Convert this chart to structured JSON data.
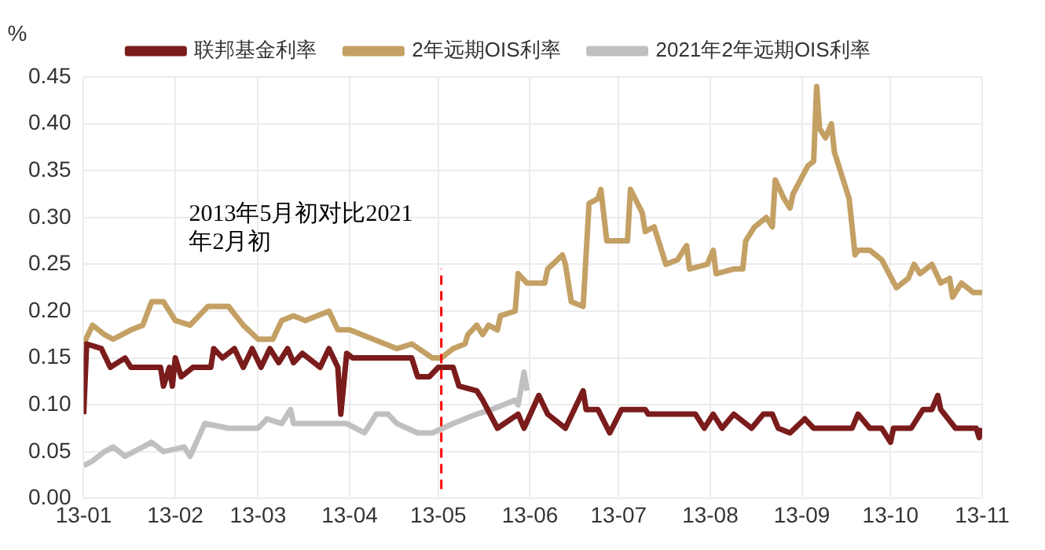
{
  "chart_data": {
    "type": "line",
    "ylabel": "%",
    "xlim": [
      "2013-01-01",
      "2013-11-01"
    ],
    "xticks": [
      {
        "value": "2013-01",
        "label": "13-01"
      },
      {
        "value": "2013-02",
        "label": "13-02"
      },
      {
        "value": "2013-03",
        "label": "13-03"
      },
      {
        "value": "2013-04",
        "label": "13-04"
      },
      {
        "value": "2013-05",
        "label": "13-05"
      },
      {
        "value": "2013-06",
        "label": "13-06"
      },
      {
        "value": "2013-07",
        "label": "13-07"
      },
      {
        "value": "2013-08",
        "label": "13-08"
      },
      {
        "value": "2013-09",
        "label": "13-09"
      },
      {
        "value": "2013-10",
        "label": "13-10"
      },
      {
        "value": "2013-11",
        "label": "13-11"
      }
    ],
    "ylim": [
      0,
      0.45
    ],
    "yticks": [
      {
        "value": 0,
        "label": "0.00"
      },
      {
        "value": 0.05,
        "label": "0.05"
      },
      {
        "value": 0.1,
        "label": "0.10"
      },
      {
        "value": 0.15,
        "label": "0.15"
      },
      {
        "value": 0.2,
        "label": "0.20"
      },
      {
        "value": 0.25,
        "label": "0.25"
      },
      {
        "value": 0.3,
        "label": "0.30"
      },
      {
        "value": 0.35,
        "label": "0.35"
      },
      {
        "value": 0.4,
        "label": "0.40"
      },
      {
        "value": 0.45,
        "label": "0.45"
      }
    ],
    "grid": true,
    "legend": "top",
    "marker": "none",
    "line_style": "solid",
    "ref_lines": [
      {
        "axis": "x",
        "value": "2013-05-02",
        "label": "2013年5月初对比2021\n年2月初",
        "color": "#ff0000",
        "line_style": "dashed"
      }
    ],
    "series": [
      {
        "name": "联邦基金利率",
        "color": "#7b1c1c",
        "x": [
          "2013-01-01",
          "2013-01-02",
          "2013-01-07",
          "2013-01-10",
          "2013-01-15",
          "2013-01-17",
          "2013-01-27",
          "2013-01-28",
          "2013-01-30",
          "2013-01-31",
          "2013-02-01",
          "2013-02-03",
          "2013-02-07",
          "2013-02-13",
          "2013-02-14",
          "2013-02-17",
          "2013-02-21",
          "2013-02-24",
          "2013-02-27",
          "2013-03-02",
          "2013-03-05",
          "2013-03-08",
          "2013-03-11",
          "2013-03-13",
          "2013-03-16",
          "2013-03-22",
          "2013-03-25",
          "2013-03-28",
          "2013-03-29",
          "2013-03-31",
          "2013-04-02",
          "2013-04-22",
          "2013-04-24",
          "2013-04-28",
          "2013-05-01",
          "2013-05-06",
          "2013-05-08",
          "2013-05-14",
          "2013-05-16",
          "2013-05-21",
          "2013-05-28",
          "2013-05-30",
          "2013-06-04",
          "2013-06-07",
          "2013-06-13",
          "2013-06-19",
          "2013-06-20",
          "2013-06-24",
          "2013-06-28",
          "2013-07-02",
          "2013-07-10",
          "2013-07-11",
          "2013-07-27",
          "2013-07-30",
          "2013-08-02",
          "2013-08-05",
          "2013-08-09",
          "2013-08-15",
          "2013-08-19",
          "2013-08-22",
          "2013-08-24",
          "2013-08-28",
          "2013-09-02",
          "2013-09-05",
          "2013-09-18",
          "2013-09-20",
          "2013-09-24",
          "2013-09-28",
          "2013-10-01",
          "2013-10-02",
          "2013-10-08",
          "2013-10-12",
          "2013-10-15",
          "2013-10-17",
          "2013-10-18",
          "2013-10-23",
          "2013-10-30",
          "2013-10-31",
          "2013-11-01"
        ],
        "values": [
          0.09,
          0.165,
          0.16,
          0.14,
          0.15,
          0.14,
          0.14,
          0.12,
          0.14,
          0.12,
          0.15,
          0.13,
          0.14,
          0.14,
          0.16,
          0.15,
          0.16,
          0.14,
          0.16,
          0.14,
          0.16,
          0.145,
          0.16,
          0.145,
          0.155,
          0.14,
          0.16,
          0.14,
          0.09,
          0.155,
          0.15,
          0.15,
          0.13,
          0.13,
          0.14,
          0.14,
          0.12,
          0.115,
          0.105,
          0.075,
          0.09,
          0.075,
          0.11,
          0.09,
          0.075,
          0.115,
          0.095,
          0.095,
          0.07,
          0.095,
          0.095,
          0.09,
          0.09,
          0.075,
          0.09,
          0.075,
          0.09,
          0.075,
          0.09,
          0.09,
          0.075,
          0.07,
          0.085,
          0.075,
          0.075,
          0.09,
          0.075,
          0.075,
          0.06,
          0.075,
          0.075,
          0.095,
          0.095,
          0.11,
          0.095,
          0.075,
          0.075,
          0.065,
          0.075
        ]
      },
      {
        "name": "2年远期OIS利率",
        "color": "#c4a064",
        "x": [
          "2013-01-01",
          "2013-01-04",
          "2013-01-08",
          "2013-01-11",
          "2013-01-17",
          "2013-01-21",
          "2013-01-24",
          "2013-01-28",
          "2013-02-01",
          "2013-02-06",
          "2013-02-12",
          "2013-02-19",
          "2013-02-24",
          "2013-03-01",
          "2013-03-06",
          "2013-03-09",
          "2013-03-13",
          "2013-03-17",
          "2013-03-25",
          "2013-03-28",
          "2013-04-01",
          "2013-04-09",
          "2013-04-17",
          "2013-04-22",
          "2013-04-29",
          "2013-05-02",
          "2013-05-06",
          "2013-05-10",
          "2013-05-11",
          "2013-05-14",
          "2013-05-16",
          "2013-05-18",
          "2013-05-21",
          "2013-05-22",
          "2013-05-27",
          "2013-05-28",
          "2013-05-31",
          "2013-06-06",
          "2013-06-07",
          "2013-06-12",
          "2013-06-13",
          "2013-06-15",
          "2013-06-19",
          "2013-06-21",
          "2013-06-24",
          "2013-06-25",
          "2013-06-27",
          "2013-07-04",
          "2013-07-05",
          "2013-07-09",
          "2013-07-10",
          "2013-07-13",
          "2013-07-17",
          "2013-07-21",
          "2013-07-24",
          "2013-07-25",
          "2013-07-31",
          "2013-08-02",
          "2013-08-03",
          "2013-08-09",
          "2013-08-12",
          "2013-08-13",
          "2013-08-16",
          "2013-08-20",
          "2013-08-22",
          "2013-08-23",
          "2013-08-26",
          "2013-08-28",
          "2013-08-29",
          "2013-09-03",
          "2013-09-05",
          "2013-09-06",
          "2013-09-07",
          "2013-09-09",
          "2013-09-11",
          "2013-09-12",
          "2013-09-17",
          "2013-09-19",
          "2013-09-20",
          "2013-09-24",
          "2013-09-28",
          "2013-10-03",
          "2013-10-07",
          "2013-10-09",
          "2013-10-11",
          "2013-10-15",
          "2013-10-18",
          "2013-10-21",
          "2013-10-22",
          "2013-10-25",
          "2013-10-29",
          "2013-11-01"
        ],
        "values": [
          0.165,
          0.185,
          0.175,
          0.17,
          0.18,
          0.185,
          0.21,
          0.21,
          0.19,
          0.185,
          0.205,
          0.205,
          0.185,
          0.17,
          0.17,
          0.19,
          0.195,
          0.19,
          0.2,
          0.18,
          0.18,
          0.17,
          0.16,
          0.165,
          0.15,
          0.15,
          0.16,
          0.165,
          0.175,
          0.185,
          0.175,
          0.185,
          0.18,
          0.195,
          0.2,
          0.24,
          0.23,
          0.23,
          0.245,
          0.26,
          0.25,
          0.21,
          0.205,
          0.315,
          0.32,
          0.33,
          0.275,
          0.275,
          0.33,
          0.305,
          0.285,
          0.29,
          0.25,
          0.255,
          0.27,
          0.245,
          0.25,
          0.265,
          0.24,
          0.245,
          0.245,
          0.275,
          0.29,
          0.3,
          0.29,
          0.34,
          0.32,
          0.31,
          0.325,
          0.355,
          0.36,
          0.44,
          0.395,
          0.385,
          0.4,
          0.37,
          0.32,
          0.26,
          0.265,
          0.265,
          0.255,
          0.225,
          0.235,
          0.25,
          0.24,
          0.25,
          0.23,
          0.235,
          0.215,
          0.23,
          0.22,
          0.22
        ]
      },
      {
        "name": "2021年2年远期OIS利率",
        "color": "#c0c0c0",
        "x": [
          "2013-01-01",
          "2013-01-04",
          "2013-01-08",
          "2013-01-11",
          "2013-01-15",
          "2013-01-21",
          "2013-01-24",
          "2013-01-28",
          "2013-02-04",
          "2013-02-06",
          "2013-02-11",
          "2013-02-19",
          "2013-02-24",
          "2013-03-01",
          "2013-03-04",
          "2013-03-09",
          "2013-03-12",
          "2013-03-13",
          "2013-03-25",
          "2013-03-31",
          "2013-04-06",
          "2013-04-10",
          "2013-04-14",
          "2013-04-17",
          "2013-04-24",
          "2013-04-29",
          "2013-05-06",
          "2013-05-14",
          "2013-05-19",
          "2013-05-27",
          "2013-05-28",
          "2013-05-30",
          "2013-05-31"
        ],
        "values": [
          0.035,
          0.04,
          0.05,
          0.055,
          0.045,
          0.055,
          0.06,
          0.05,
          0.055,
          0.045,
          0.08,
          0.075,
          0.075,
          0.075,
          0.085,
          0.08,
          0.095,
          0.08,
          0.08,
          0.08,
          0.07,
          0.09,
          0.09,
          0.08,
          0.07,
          0.07,
          0.08,
          0.09,
          0.095,
          0.105,
          0.1,
          0.135,
          0.115
        ]
      }
    ]
  }
}
